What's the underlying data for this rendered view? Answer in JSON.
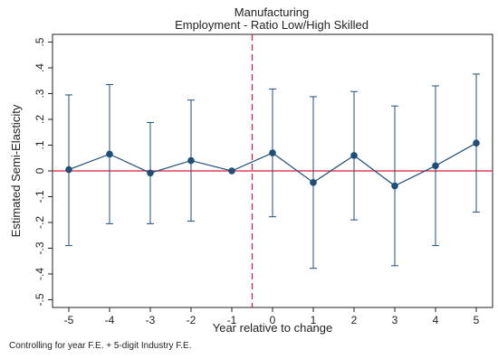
{
  "chart_data": {
    "type": "scatter",
    "title": "Manufacturing",
    "subtitle": "Employment - Ratio Low/High Skilled",
    "xlabel": "Year relative to change",
    "ylabel": "Estimated Semi-Elasticity",
    "note": "Controlling for year F.E. + 5-digit Industry F.E.",
    "xlim": [
      -5.4,
      5.4
    ],
    "ylim": [
      -0.53,
      0.53
    ],
    "x_ticks": [
      -5,
      -4,
      -3,
      -2,
      -1,
      0,
      1,
      2,
      3,
      4,
      5
    ],
    "x_tick_labels": [
      "-5",
      "-4",
      "-3",
      "-2",
      "-1",
      "0",
      "1",
      "2",
      "3",
      "4",
      "5"
    ],
    "y_ticks": [
      -0.5,
      -0.4,
      -0.3,
      -0.2,
      -0.1,
      0,
      0.1,
      0.2,
      0.3,
      0.4,
      0.5
    ],
    "y_tick_labels": [
      "-.5",
      "-.4",
      "-.3",
      "-.2",
      "-.1",
      "0",
      ".1",
      ".2",
      ".3",
      ".4",
      ".5"
    ],
    "reference_lines": {
      "horizontal_y": 0,
      "vertical_x": -0.5
    },
    "series": [
      {
        "points": [
          {
            "x": -5,
            "y": 0.005,
            "lo": -0.29,
            "hi": 0.295
          },
          {
            "x": -4,
            "y": 0.065,
            "lo": -0.205,
            "hi": 0.335
          },
          {
            "x": -3,
            "y": -0.008,
            "lo": -0.205,
            "hi": 0.188
          },
          {
            "x": -2,
            "y": 0.04,
            "lo": -0.195,
            "hi": 0.275
          },
          {
            "x": -1,
            "y": 0.0,
            "lo": null,
            "hi": null
          },
          {
            "x": 0,
            "y": 0.07,
            "lo": -0.178,
            "hi": 0.318
          },
          {
            "x": 1,
            "y": -0.045,
            "lo": -0.378,
            "hi": 0.288
          },
          {
            "x": 2,
            "y": 0.06,
            "lo": -0.19,
            "hi": 0.308
          },
          {
            "x": 3,
            "y": -0.058,
            "lo": -0.368,
            "hi": 0.252
          },
          {
            "x": 4,
            "y": 0.02,
            "lo": -0.29,
            "hi": 0.33
          },
          {
            "x": 5,
            "y": 0.108,
            "lo": -0.16,
            "hi": 0.376
          }
        ]
      }
    ],
    "colors": {
      "series": "#1f4e79",
      "zero_line": "#d91e3a",
      "event_line": "#c0284a"
    }
  }
}
